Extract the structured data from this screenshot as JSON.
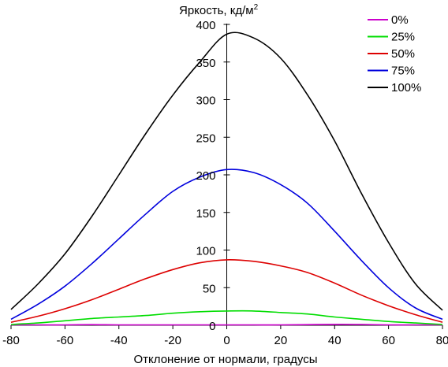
{
  "chart_data": {
    "type": "line",
    "ylabel": "Яркость, кд/м",
    "ylabel_sup": "2",
    "xlabel": "Отклонение от нормали, градусы",
    "xlim": [
      -80,
      80
    ],
    "ylim": [
      0,
      400
    ],
    "x_ticks": [
      -80,
      -60,
      -40,
      -20,
      0,
      20,
      40,
      60,
      80
    ],
    "y_ticks": [
      0,
      50,
      100,
      150,
      200,
      250,
      300,
      350,
      400
    ],
    "x_tick_labels": [
      "-80",
      "-60",
      "-40",
      "-20",
      "0",
      "20",
      "40",
      "60",
      "80"
    ],
    "y_tick_labels": [
      "0",
      "50",
      "100",
      "150",
      "200",
      "250",
      "300",
      "350",
      "400"
    ],
    "grid": false,
    "legend_position": "top-right",
    "x": [
      -80,
      -70,
      -60,
      -50,
      -40,
      -30,
      -20,
      -10,
      0,
      10,
      20,
      30,
      40,
      50,
      60,
      70,
      80
    ],
    "series": [
      {
        "name": "0%",
        "color": "#cc00cc",
        "values": [
          0.5,
          0.5,
          0.5,
          0.8,
          0.5,
          0.5,
          0.5,
          0.5,
          0.5,
          0.5,
          0.5,
          0.8,
          1.2,
          1.0,
          0.5,
          0.5,
          0.5
        ]
      },
      {
        "name": "25%",
        "color": "#00dd00",
        "values": [
          1,
          3,
          6,
          9,
          11,
          13,
          16,
          18,
          19,
          19,
          17,
          15,
          11,
          8,
          5,
          3,
          1
        ]
      },
      {
        "name": "50%",
        "color": "#dd0000",
        "values": [
          4,
          12,
          22,
          34,
          48,
          62,
          74,
          83,
          87,
          85,
          79,
          70,
          56,
          40,
          26,
          14,
          4
        ]
      },
      {
        "name": "75%",
        "color": "#0000dd",
        "values": [
          8,
          28,
          52,
          82,
          115,
          148,
          178,
          197,
          207,
          203,
          187,
          162,
          125,
          86,
          50,
          23,
          8
        ]
      },
      {
        "name": "100%",
        "color": "#000000",
        "values": [
          21,
          55,
          95,
          145,
          200,
          255,
          306,
          350,
          387,
          382,
          355,
          306,
          245,
          175,
          110,
          55,
          20
        ]
      }
    ]
  }
}
